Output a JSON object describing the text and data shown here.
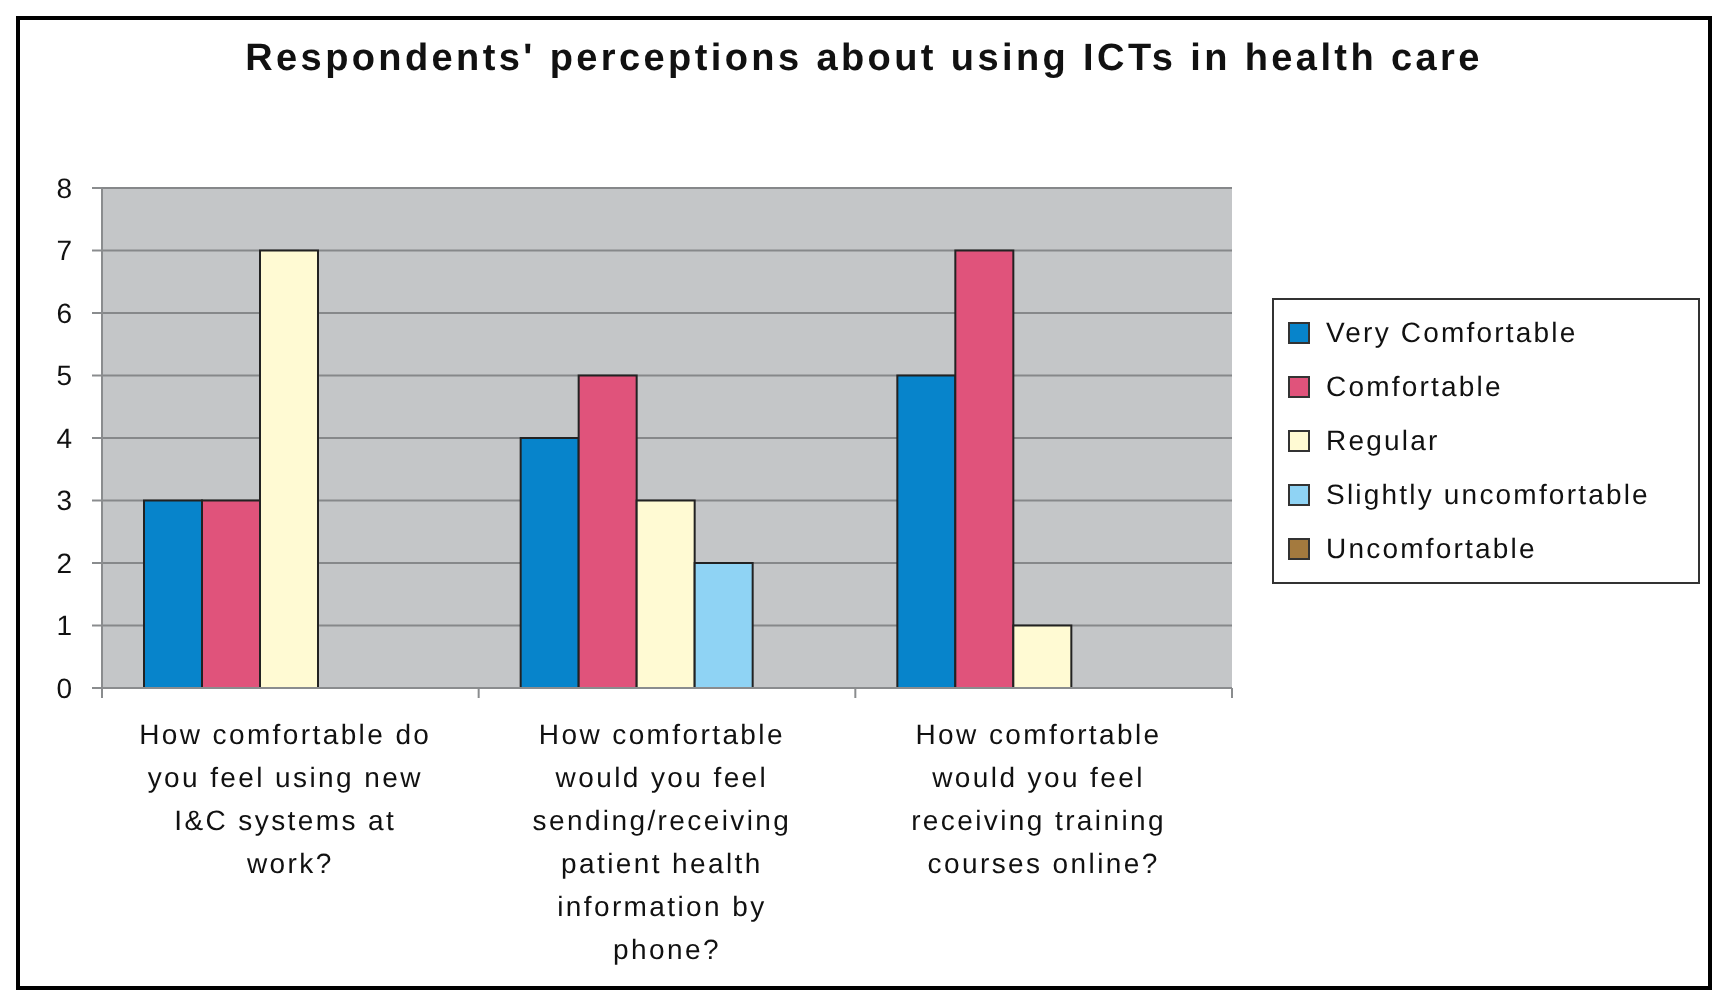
{
  "chart_data": {
    "type": "bar",
    "title": "Respondents' perceptions about using ICTs in health care",
    "categories": [
      "How comfortable do you feel using new I&C systems at work?",
      "How comfortable would you feel sending/receiving patient health information by phone?",
      "How comfortable would you feel receiving training courses online?"
    ],
    "series": [
      {
        "name": "Very Comfortable",
        "color": "#0784cb",
        "values": [
          3,
          4,
          5
        ]
      },
      {
        "name": "Comfortable",
        "color": "#e0537b",
        "values": [
          3,
          5,
          7
        ]
      },
      {
        "name": "Regular",
        "color": "#fffad3",
        "values": [
          7,
          3,
          1
        ]
      },
      {
        "name": "Slightly uncomfortable",
        "color": "#8fd3f4",
        "values": [
          0,
          2,
          0
        ]
      },
      {
        "name": "Uncomfortable",
        "color": "#a47a3e",
        "values": [
          0,
          0,
          0
        ]
      }
    ],
    "ylim": [
      0,
      8
    ],
    "yticks": [
      0,
      1,
      2,
      3,
      4,
      5,
      6,
      7,
      8
    ],
    "grid": "y",
    "legend": "right"
  }
}
